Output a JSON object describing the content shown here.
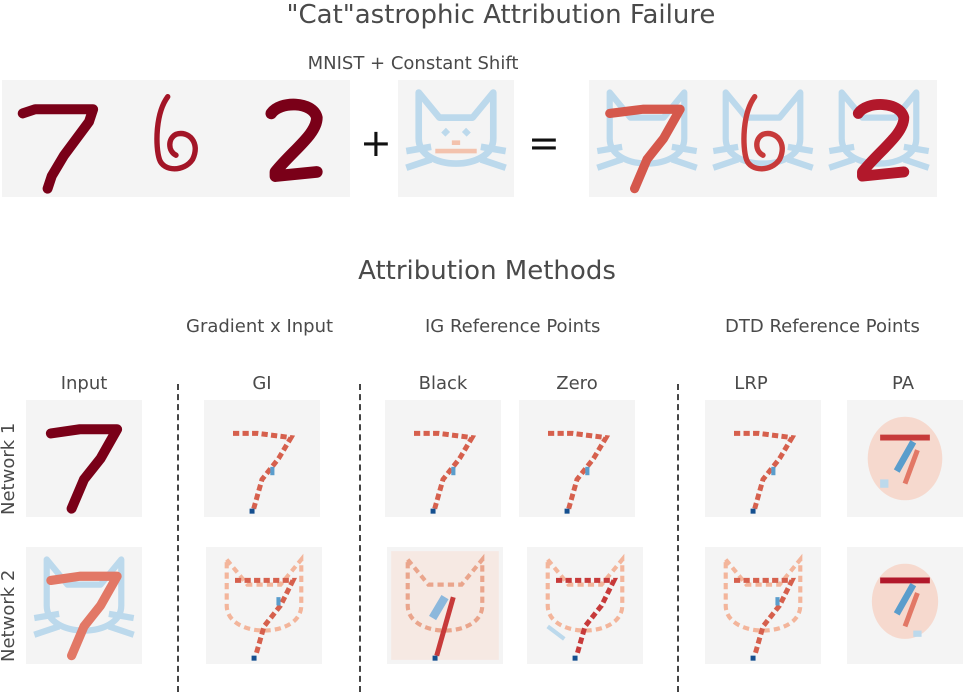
{
  "title": "\"Cat\"astrophic Attribution Failure",
  "top_section": {
    "caption": "MNIST + Constant Shift",
    "plus_symbol": "+",
    "equals_symbol": "="
  },
  "methods": {
    "title": "Attribution Methods",
    "groups": [
      "Gradient x Input",
      "IG Reference Points",
      "DTD Reference Points"
    ],
    "columns": [
      "Input",
      "GI",
      "Black",
      "Zero",
      "LRP",
      "PA"
    ],
    "rows": [
      "Network 1",
      "Network 2"
    ]
  },
  "colors": {
    "strong_red": "#7a0018",
    "mid_red": "#c73a3a",
    "light_red": "#f3b59b",
    "light_blue": "#bcd9ec",
    "mid_blue": "#5a9dcc",
    "dark_blue": "#154f8f",
    "tile_background": "#f4f4f4"
  }
}
